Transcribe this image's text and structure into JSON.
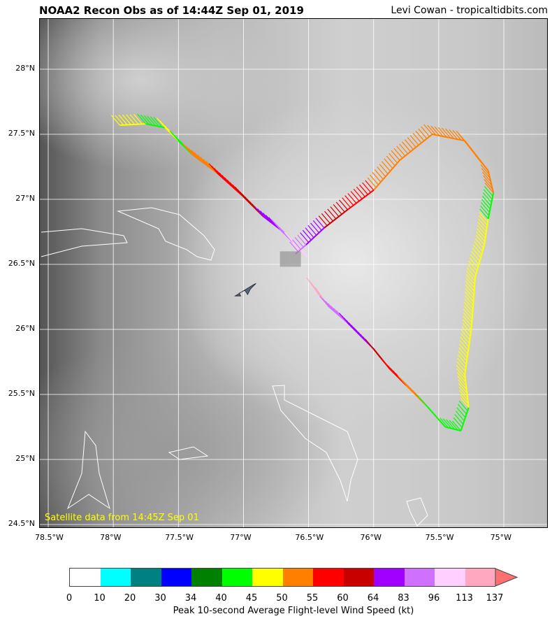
{
  "header": {
    "title": "NOAA2 Recon Obs as of 14:44Z Sep 01, 2019",
    "credit": "Levi Cowan - tropicaltidbits.com"
  },
  "map": {
    "satellite_label": "Satellite data from 14:45Z Sep 01",
    "lon_ticks": [
      "78.5°W",
      "78°W",
      "77.5°W",
      "77°W",
      "76.5°W",
      "76°W",
      "75.5°W",
      "75°W"
    ],
    "lat_ticks": [
      "28°N",
      "27.5°N",
      "27°N",
      "26.5°N",
      "26°N",
      "25.5°N",
      "25°N",
      "24.5°N"
    ],
    "aircraft_icon": "airplane-icon",
    "aircraft_position": {
      "lat": 26.3,
      "lon": -77.0
    },
    "track": [
      [
        -77.95,
        27.57,
        "45"
      ],
      [
        -77.75,
        27.58,
        "40"
      ],
      [
        -77.6,
        27.55,
        "45"
      ],
      [
        -77.5,
        27.45,
        "40"
      ],
      [
        -77.4,
        27.35,
        "50"
      ],
      [
        -77.2,
        27.2,
        "55"
      ],
      [
        -77.0,
        27.02,
        "60"
      ],
      [
        -76.85,
        26.87,
        "64"
      ],
      [
        -76.72,
        26.77,
        "83"
      ],
      [
        -76.62,
        26.67,
        "96"
      ],
      [
        -76.5,
        26.55,
        "113"
      ],
      [
        -76.45,
        26.32,
        "113"
      ],
      [
        -76.35,
        26.18,
        "83"
      ],
      [
        -76.2,
        26.05,
        "64"
      ],
      [
        -76.0,
        25.85,
        "60"
      ],
      [
        -75.88,
        25.7,
        "55"
      ],
      [
        -75.75,
        25.57,
        "50"
      ],
      [
        -75.6,
        25.42,
        "40"
      ],
      [
        -75.45,
        25.25,
        "40"
      ],
      [
        -75.33,
        25.22,
        "40"
      ],
      [
        -75.27,
        25.4,
        "45"
      ],
      [
        -75.3,
        25.65,
        "45"
      ],
      [
        -75.25,
        26.0,
        "45"
      ],
      [
        -75.22,
        26.4,
        "45"
      ],
      [
        -75.15,
        26.65,
        "45"
      ],
      [
        -75.12,
        26.85,
        "40"
      ],
      [
        -75.08,
        27.05,
        "50"
      ],
      [
        -75.12,
        27.22,
        "50"
      ],
      [
        -75.3,
        27.45,
        "50"
      ],
      [
        -75.55,
        27.5,
        "50"
      ],
      [
        -75.8,
        27.3,
        "50"
      ],
      [
        -76.0,
        27.07,
        "55"
      ],
      [
        -76.2,
        26.92,
        "60"
      ],
      [
        -76.38,
        26.78,
        "64"
      ],
      [
        -76.52,
        26.65,
        "83"
      ],
      [
        -76.6,
        26.58,
        "96"
      ]
    ]
  },
  "colorbar": {
    "title": "Peak 10-second Average Flight-level Wind Speed (kt)",
    "ticks": [
      "0",
      "10",
      "20",
      "30",
      "34",
      "40",
      "45",
      "50",
      "55",
      "60",
      "64",
      "83",
      "96",
      "113",
      "137"
    ],
    "colors": [
      "#ffffff",
      "#00ffff",
      "#008080",
      "#0000ff",
      "#008000",
      "#00ff00",
      "#ffff00",
      "#ff8000",
      "#ff0000",
      "#c80000",
      "#a000ff",
      "#d070ff",
      "#ffd0ff",
      "#ffa8c0"
    ],
    "extend_color": "#ff7070"
  }
}
